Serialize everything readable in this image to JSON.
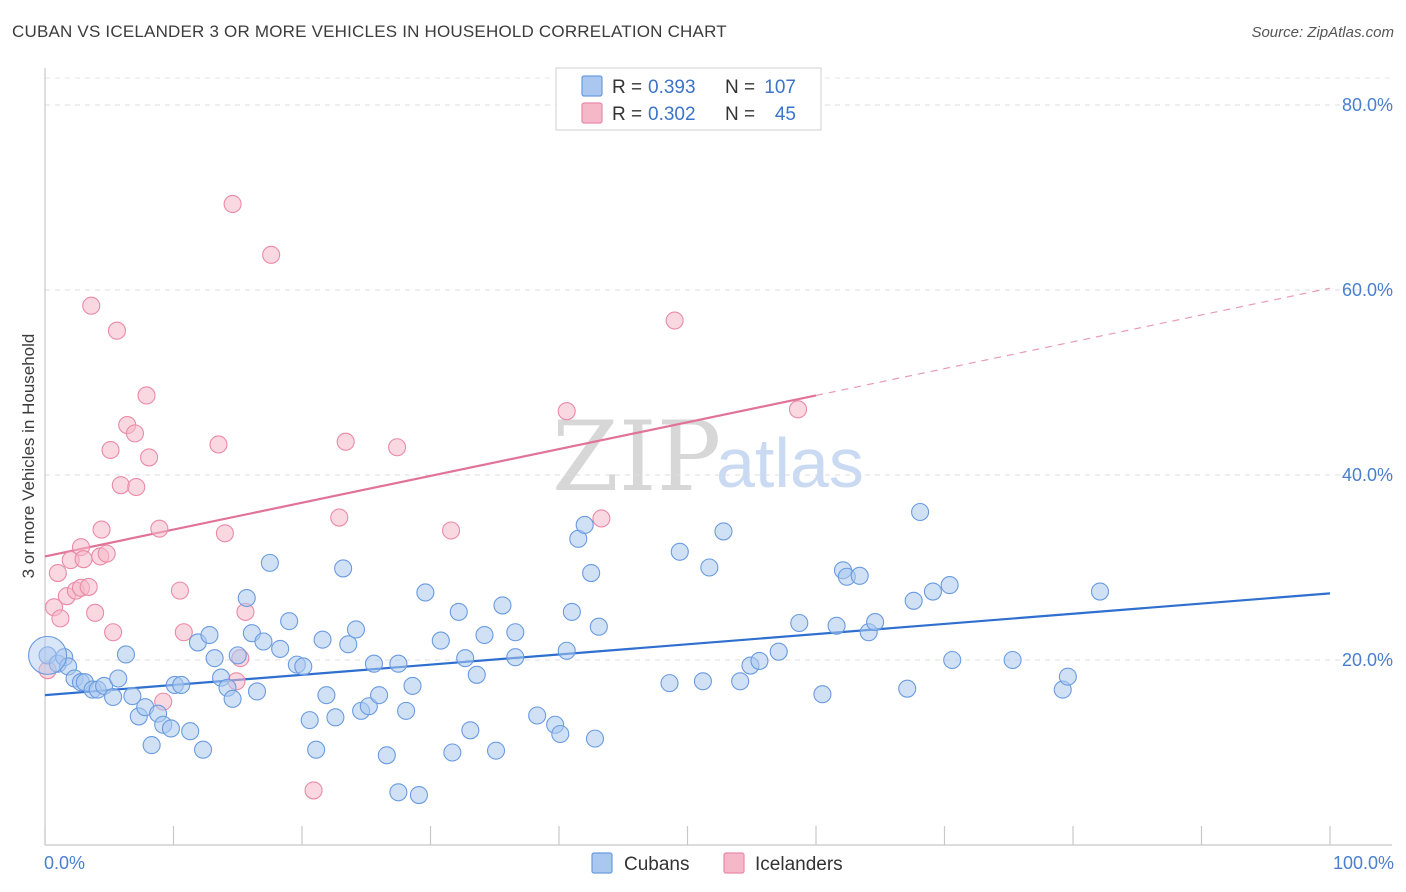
{
  "header": {
    "title": "CUBAN VS ICELANDER 3 OR MORE VEHICLES IN HOUSEHOLD CORRELATION CHART",
    "source": "Source: ZipAtlas.com"
  },
  "watermark": {
    "zip": "ZIP",
    "atlas": "atlas"
  },
  "legend": {
    "rows": [
      {
        "r_label": "R =",
        "r_value": "0.393",
        "n_label": "N =",
        "n_value": "107",
        "color": "#aac8ef"
      },
      {
        "r_label": "R =",
        "r_value": "0.302",
        "n_label": "N =",
        "n_value": "45",
        "color": "#f5b8c8"
      }
    ]
  },
  "bottom_legend": [
    {
      "label": "Cubans",
      "color": "#aac8ef"
    },
    {
      "label": "Icelanders",
      "color": "#f5b8c8"
    }
  ],
  "chart_data": {
    "type": "scatter",
    "title": "CUBAN VS ICELANDER 3 OR MORE VEHICLES IN HOUSEHOLD CORRELATION CHART",
    "xlabel": "",
    "ylabel": "3 or more Vehicles in Household",
    "xlim": [
      0,
      100
    ],
    "ylim": [
      0,
      84
    ],
    "x_tick_labels": [
      "0.0%",
      "100.0%"
    ],
    "y_ticks": [
      20,
      40,
      60,
      80
    ],
    "y_tick_labels": [
      "20.0%",
      "40.0%",
      "60.0%",
      "80.0%"
    ],
    "grid": true,
    "series": [
      {
        "name": "Cubans",
        "color": "#aac8ef",
        "stroke": "#6a9be0",
        "line_color": "#2e6fd0",
        "trend": {
          "x0": 0,
          "y0": 16.2,
          "x1": 100,
          "y1": 27.2,
          "solid_until": 100
        },
        "points": [
          [
            0.2,
            20.5
          ],
          [
            1.0,
            19.6
          ],
          [
            1.5,
            20.3
          ],
          [
            1.8,
            19.3
          ],
          [
            2.3,
            18.0
          ],
          [
            2.8,
            17.6
          ],
          [
            3.1,
            17.6
          ],
          [
            3.7,
            16.8
          ],
          [
            4.1,
            16.8
          ],
          [
            4.6,
            17.2
          ],
          [
            5.3,
            16.0
          ],
          [
            5.7,
            18.0
          ],
          [
            6.3,
            20.6
          ],
          [
            6.8,
            16.1
          ],
          [
            7.3,
            13.9
          ],
          [
            7.8,
            14.9
          ],
          [
            8.3,
            10.8
          ],
          [
            8.8,
            14.2
          ],
          [
            9.2,
            13.0
          ],
          [
            9.8,
            12.6
          ],
          [
            10.1,
            17.3
          ],
          [
            10.6,
            17.3
          ],
          [
            11.3,
            12.3
          ],
          [
            11.9,
            21.9
          ],
          [
            12.3,
            10.3
          ],
          [
            12.8,
            22.7
          ],
          [
            13.2,
            20.2
          ],
          [
            13.7,
            18.1
          ],
          [
            14.2,
            17.0
          ],
          [
            14.6,
            15.8
          ],
          [
            15.0,
            20.5
          ],
          [
            15.7,
            26.7
          ],
          [
            16.1,
            22.9
          ],
          [
            16.5,
            16.6
          ],
          [
            17.0,
            22.0
          ],
          [
            17.5,
            30.5
          ],
          [
            18.3,
            21.2
          ],
          [
            19.0,
            24.2
          ],
          [
            19.6,
            19.5
          ],
          [
            20.1,
            19.3
          ],
          [
            20.6,
            13.5
          ],
          [
            21.1,
            10.3
          ],
          [
            21.6,
            22.2
          ],
          [
            21.9,
            16.2
          ],
          [
            22.6,
            13.8
          ],
          [
            23.2,
            29.9
          ],
          [
            23.6,
            21.7
          ],
          [
            24.2,
            23.3
          ],
          [
            24.6,
            14.5
          ],
          [
            25.2,
            15.0
          ],
          [
            25.6,
            19.6
          ],
          [
            26.0,
            16.2
          ],
          [
            26.6,
            9.7
          ],
          [
            27.5,
            5.7
          ],
          [
            27.5,
            19.6
          ],
          [
            28.1,
            14.5
          ],
          [
            28.6,
            17.2
          ],
          [
            29.1,
            5.4
          ],
          [
            29.6,
            27.3
          ],
          [
            30.8,
            22.1
          ],
          [
            31.7,
            10.0
          ],
          [
            32.2,
            25.2
          ],
          [
            32.7,
            20.2
          ],
          [
            33.1,
            12.4
          ],
          [
            33.6,
            18.4
          ],
          [
            34.2,
            22.7
          ],
          [
            35.1,
            10.2
          ],
          [
            35.6,
            25.9
          ],
          [
            36.6,
            23.0
          ],
          [
            36.6,
            20.3
          ],
          [
            38.3,
            14.0
          ],
          [
            39.7,
            13.0
          ],
          [
            40.1,
            12.0
          ],
          [
            40.6,
            21.0
          ],
          [
            41.0,
            25.2
          ],
          [
            41.5,
            33.1
          ],
          [
            42.0,
            34.6
          ],
          [
            42.5,
            29.4
          ],
          [
            42.8,
            11.5
          ],
          [
            43.1,
            23.6
          ],
          [
            48.6,
            17.5
          ],
          [
            49.4,
            31.7
          ],
          [
            51.2,
            17.7
          ],
          [
            51.7,
            30.0
          ],
          [
            52.8,
            33.9
          ],
          [
            54.1,
            17.7
          ],
          [
            54.9,
            19.4
          ],
          [
            55.6,
            19.9
          ],
          [
            57.1,
            20.9
          ],
          [
            58.7,
            24.0
          ],
          [
            60.5,
            16.3
          ],
          [
            61.6,
            23.7
          ],
          [
            62.1,
            29.7
          ],
          [
            62.4,
            29.0
          ],
          [
            63.4,
            29.1
          ],
          [
            64.1,
            23.0
          ],
          [
            64.6,
            24.1
          ],
          [
            67.1,
            16.9
          ],
          [
            67.6,
            26.4
          ],
          [
            68.1,
            36.0
          ],
          [
            69.1,
            27.4
          ],
          [
            70.4,
            28.1
          ],
          [
            70.6,
            20.0
          ],
          [
            75.3,
            20.0
          ],
          [
            79.2,
            16.8
          ],
          [
            79.6,
            18.2
          ],
          [
            82.1,
            27.4
          ]
        ]
      },
      {
        "name": "Icelanders",
        "color": "#f5b8c8",
        "stroke": "#ea8aa6",
        "line_color": "#e07397",
        "trend": {
          "x0": 0,
          "y0": 31.2,
          "x1": 100,
          "y1": 60.2,
          "solid_until": 60
        },
        "points": [
          [
            0.2,
            18.9
          ],
          [
            0.7,
            25.7
          ],
          [
            1.0,
            29.4
          ],
          [
            1.2,
            24.5
          ],
          [
            1.7,
            26.9
          ],
          [
            2.0,
            30.8
          ],
          [
            2.4,
            27.5
          ],
          [
            2.8,
            27.8
          ],
          [
            2.8,
            32.2
          ],
          [
            3.0,
            30.9
          ],
          [
            3.4,
            27.9
          ],
          [
            3.6,
            58.3
          ],
          [
            3.9,
            25.1
          ],
          [
            4.3,
            31.2
          ],
          [
            4.4,
            34.1
          ],
          [
            4.8,
            31.5
          ],
          [
            5.1,
            42.7
          ],
          [
            5.3,
            23.0
          ],
          [
            5.6,
            55.6
          ],
          [
            5.9,
            38.9
          ],
          [
            6.4,
            45.4
          ],
          [
            7.0,
            44.5
          ],
          [
            7.1,
            38.7
          ],
          [
            7.9,
            48.6
          ],
          [
            8.1,
            41.9
          ],
          [
            8.9,
            34.2
          ],
          [
            9.2,
            15.5
          ],
          [
            10.5,
            27.5
          ],
          [
            10.8,
            23.0
          ],
          [
            13.5,
            43.3
          ],
          [
            14.0,
            33.7
          ],
          [
            14.6,
            69.3
          ],
          [
            15.2,
            20.2
          ],
          [
            15.6,
            25.2
          ],
          [
            17.6,
            63.8
          ],
          [
            20.9,
            5.9
          ],
          [
            22.9,
            35.4
          ],
          [
            23.4,
            43.6
          ],
          [
            27.4,
            43.0
          ],
          [
            31.6,
            34.0
          ],
          [
            40.6,
            46.9
          ],
          [
            43.3,
            35.3
          ],
          [
            49.0,
            56.7
          ],
          [
            58.6,
            47.1
          ],
          [
            14.9,
            17.7
          ]
        ]
      }
    ]
  }
}
